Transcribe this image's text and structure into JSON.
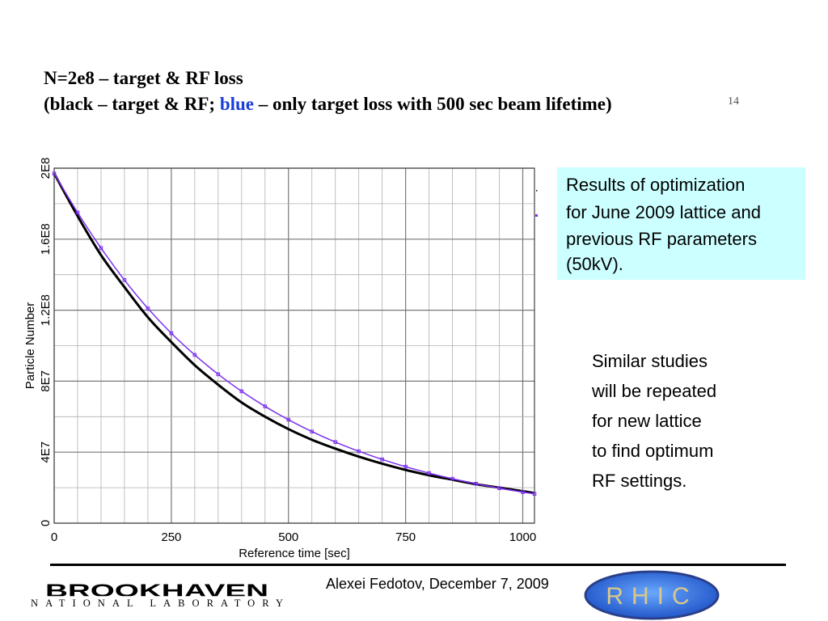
{
  "slide": {
    "title_line1": "N=2e8 – target & RF loss",
    "title_line2_part1": "(black – target & RF; ",
    "title_line2_blue": "blue",
    "title_line2_part2": " – only target loss with 500 sec beam lifetime)",
    "slide_number": "14",
    "note_box": {
      "line1": "Results of optimization",
      "line2": "for June 2009 lattice and",
      "line3": "previous RF parameters",
      "line4": "(50kV)."
    },
    "side_text": [
      "Similar studies",
      "will be repeated",
      "for new lattice",
      "to find optimum",
      "RF settings."
    ],
    "footer_author": "Alexei Fedotov, December 7, 2009",
    "logo_brookhaven_top": "BROOKHAVEN",
    "logo_brookhaven_bottom": "NATIONAL LABORATORY",
    "logo_rhic": "RHIC"
  },
  "colors": {
    "series_black": "#000000",
    "series_purple": "#7b2ff2",
    "note_bg": "#ccffff",
    "title_blue": "#1a3fd6"
  },
  "chart_data": {
    "type": "line",
    "xlabel": "Reference time [sec]",
    "ylabel": "Particle Number",
    "xlim": [
      0,
      1025
    ],
    "ylim": [
      0,
      200000000
    ],
    "x_ticks": [
      0,
      250,
      500,
      750,
      1000
    ],
    "x_tick_labels": [
      "0",
      "250",
      "500",
      "750",
      "1000"
    ],
    "y_ticks": [
      0,
      40000000,
      80000000,
      120000000,
      160000000,
      200000000
    ],
    "y_tick_labels": [
      "0",
      "4E7",
      "8E7",
      "1.2E8",
      "1.6E8",
      "2E8"
    ],
    "grid": true,
    "series": [
      {
        "color": "#000000",
        "x": [
          0,
          50,
          100,
          150,
          200,
          250,
          300,
          350,
          400,
          450,
          500,
          550,
          600,
          650,
          700,
          750,
          800,
          850,
          900,
          950,
          1000,
          1025
        ],
        "y": [
          197000000,
          173000000,
          151000000,
          133000000,
          116000000,
          102000000,
          89000000,
          78000000,
          68000000,
          60000000,
          53000000,
          47000000,
          42000000,
          37500000,
          33500000,
          30000000,
          27000000,
          24500000,
          22000000,
          20000000,
          18000000,
          17000000
        ]
      },
      {
        "color": "#7b2ff2",
        "marker": "square",
        "x": [
          0,
          50,
          100,
          150,
          200,
          250,
          300,
          350,
          400,
          450,
          500,
          550,
          600,
          650,
          700,
          750,
          800,
          850,
          900,
          950,
          1000,
          1025
        ],
        "y": [
          197000000,
          175000000,
          155000000,
          137000000,
          121000000,
          107000000,
          94800000,
          83900000,
          74300000,
          65800000,
          58300000,
          51600000,
          45700000,
          40500000,
          35900000,
          31800000,
          28200000,
          25000000,
          22200000,
          19700000,
          17500000,
          16500000
        ]
      }
    ]
  }
}
